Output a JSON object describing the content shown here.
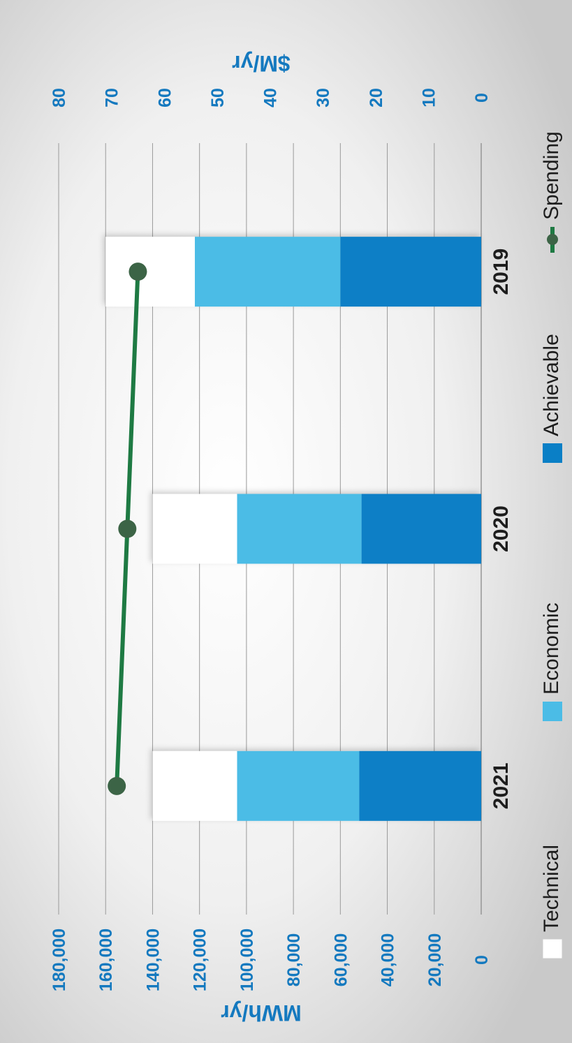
{
  "chart_data": {
    "type": "bar",
    "stacked": true,
    "categories": [
      "2019",
      "2020",
      "2021"
    ],
    "ylabel_left": "MWh/yr",
    "ylabel_right": "$M/yr",
    "left_ticks": [
      "0",
      "20,000",
      "40,000",
      "60,000",
      "80,000",
      "100,000",
      "120,000",
      "140,000",
      "160,000",
      "180,000"
    ],
    "right_ticks": [
      "0",
      "10",
      "20",
      "30",
      "40",
      "50",
      "60",
      "70",
      "80"
    ],
    "ylim_left": [
      0,
      180000
    ],
    "ylim_right": [
      0,
      80
    ],
    "grid": true,
    "legend_position": "bottom",
    "series": [
      {
        "name": "Achievable",
        "totals": [
          60000,
          51000,
          52000
        ],
        "color": "#0a7fc6"
      },
      {
        "name": "Economic",
        "totals": [
          122000,
          104000,
          104000
        ],
        "color": "#4bbce6"
      },
      {
        "name": "Technical",
        "totals": [
          160000,
          140000,
          140000
        ],
        "color": "#ffffff"
      }
    ],
    "line_series": {
      "name": "Spending",
      "axis": "right",
      "values": [
        65,
        67,
        69
      ],
      "color": "#1e7a43",
      "marker_color": "#3c6446"
    }
  },
  "colors": {
    "tick_text": "#1479bf",
    "category_text": "#1d1d1d",
    "gridline": "#9a9a9a",
    "background": "#dcdcdc"
  }
}
